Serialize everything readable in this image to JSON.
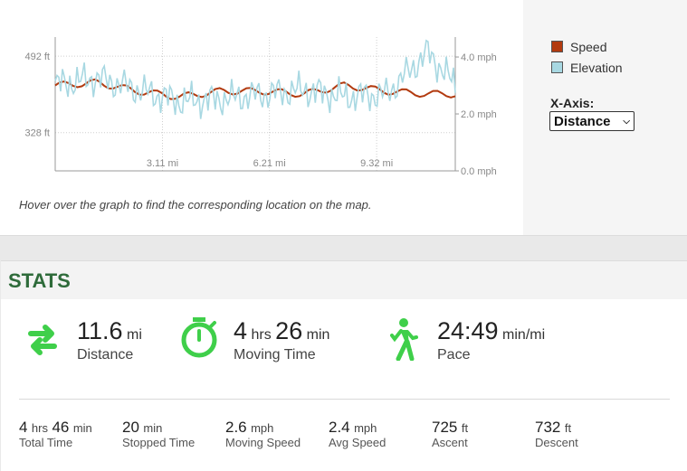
{
  "chart": {
    "hint": "Hover over the graph to find the corresponding location on the map.",
    "left_ticks": [
      "492 ft",
      "328 ft"
    ],
    "right_ticks": [
      "4.0 mph",
      "2.0 mph",
      "0.0 mph"
    ],
    "x_ticks": [
      "3.11 mi",
      "6.21 mi",
      "9.32 mi"
    ],
    "legend": [
      {
        "label": "Speed",
        "color": "#b23a0f"
      },
      {
        "label": "Elevation",
        "color": "#a8d8e2"
      }
    ],
    "xaxis_label": "X-Axis:",
    "xaxis_selected": "Distance"
  },
  "chart_data": {
    "type": "line",
    "x": [
      0,
      1.2,
      2.4,
      3.6,
      4.8,
      6.0,
      7.2,
      8.4,
      9.6,
      10.8,
      11.6
    ],
    "series": [
      {
        "name": "Speed",
        "color": "#b23a0f",
        "axis": "right",
        "values": [
          3.0,
          3.1,
          2.8,
          2.6,
          2.8,
          2.8,
          2.7,
          3.0,
          2.8,
          2.7,
          2.7
        ]
      },
      {
        "name": "Elevation",
        "color": "#a8d8e2",
        "axis": "left",
        "values": [
          430,
          445,
          420,
          395,
          400,
          410,
          420,
          405,
          410,
          500,
          430
        ]
      }
    ],
    "xlabel": "",
    "ylabel_left": "",
    "ylabel_right": "",
    "x_ticks": [
      3.11,
      6.21,
      9.32
    ],
    "grid": true
  },
  "stats": {
    "title": "STATS",
    "primary": [
      {
        "value": "11.6",
        "unit": "mi",
        "label": "Distance",
        "icon": "swap-arrows-icon"
      },
      {
        "value": "4",
        "unit": "hrs",
        "value2": "26",
        "unit2": "min",
        "label": "Moving Time",
        "icon": "stopwatch-icon"
      },
      {
        "value": "24:49",
        "unit": "min/mi",
        "label": "Pace",
        "icon": "walking-person-icon"
      }
    ],
    "secondary": [
      {
        "value": "4",
        "unit": "hrs",
        "value2": "46",
        "unit2": "min",
        "label": "Total Time"
      },
      {
        "value": "20",
        "unit": "min",
        "label": "Stopped Time"
      },
      {
        "value": "2.6",
        "unit": "mph",
        "label": "Moving Speed"
      },
      {
        "value": "2.4",
        "unit": "mph",
        "label": "Avg Speed"
      },
      {
        "value": "725",
        "unit": "ft",
        "label": "Ascent"
      },
      {
        "value": "732",
        "unit": "ft",
        "label": "Descent"
      }
    ],
    "accent": "#3fcf4a"
  }
}
